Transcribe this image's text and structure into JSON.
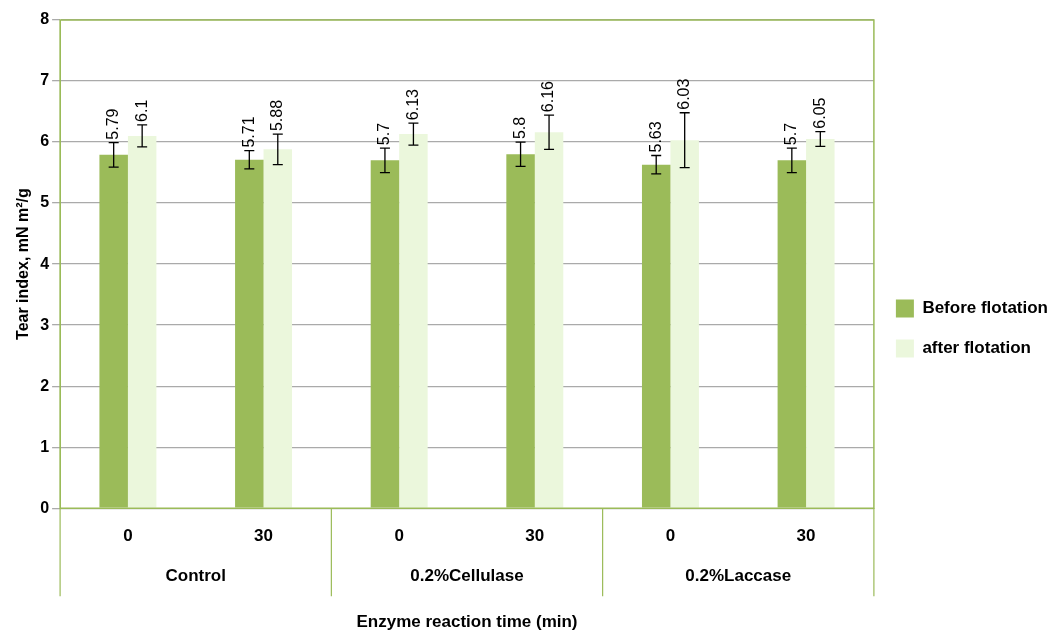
{
  "chart_data": {
    "type": "bar",
    "xlabel": "Enzyme reaction time (min)",
    "ylabel": "Tear index, mN m²/g",
    "categories": [
      "0",
      "30",
      "0",
      "30",
      "0",
      "30"
    ],
    "annotations": [
      "Control",
      "0.2%Cellulase",
      "0.2%Laccase"
    ],
    "series": [
      {
        "name": "Before flotation",
        "color": "#9bbb59",
        "values": [
          5.79,
          5.71,
          5.7,
          5.8,
          5.63,
          5.7
        ],
        "errors": [
          0.2,
          0.15,
          0.2,
          0.2,
          0.15,
          0.2
        ]
      },
      {
        "name": "after flotation",
        "color": "#ebf7dc",
        "values": [
          6.1,
          5.88,
          6.13,
          6.16,
          6.03,
          6.05
        ],
        "errors": [
          0.18,
          0.25,
          0.18,
          0.28,
          0.45,
          0.12
        ]
      }
    ],
    "ylim": [
      0,
      8
    ],
    "yticks": [
      0,
      1,
      2,
      3,
      4,
      5,
      6,
      7,
      8
    ],
    "grid": "y",
    "legend": "right",
    "data_labels": true
  }
}
